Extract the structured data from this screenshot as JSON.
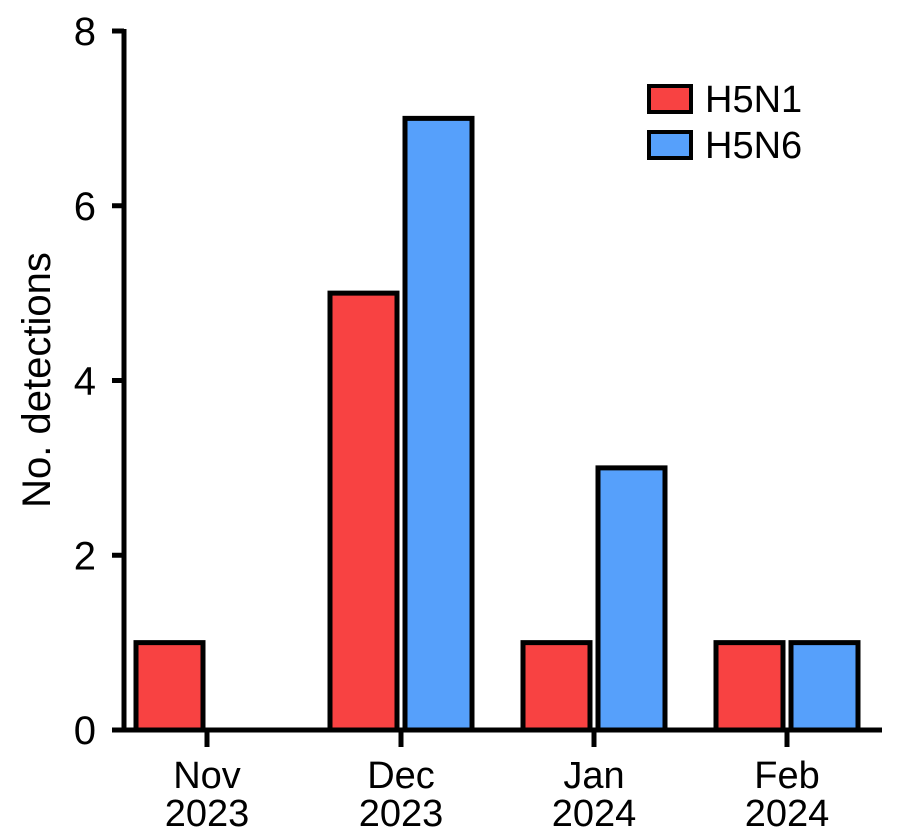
{
  "chart_data": {
    "type": "bar",
    "title": "",
    "xlabel": "",
    "ylabel": "No. detections",
    "ylim": [
      0,
      8
    ],
    "yticks": [
      0,
      2,
      4,
      6,
      8
    ],
    "categories": [
      {
        "month": "Nov",
        "year": "2023"
      },
      {
        "month": "Dec",
        "year": "2023"
      },
      {
        "month": "Jan",
        "year": "2024"
      },
      {
        "month": "Feb",
        "year": "2024"
      }
    ],
    "series": [
      {
        "name": "H5N1",
        "color": "#f84242",
        "values": [
          1,
          5,
          1,
          1
        ]
      },
      {
        "name": "H5N6",
        "color": "#56a0fb",
        "values": [
          0,
          7,
          3,
          1
        ]
      }
    ],
    "legend_position": "top-right",
    "grid": false
  }
}
